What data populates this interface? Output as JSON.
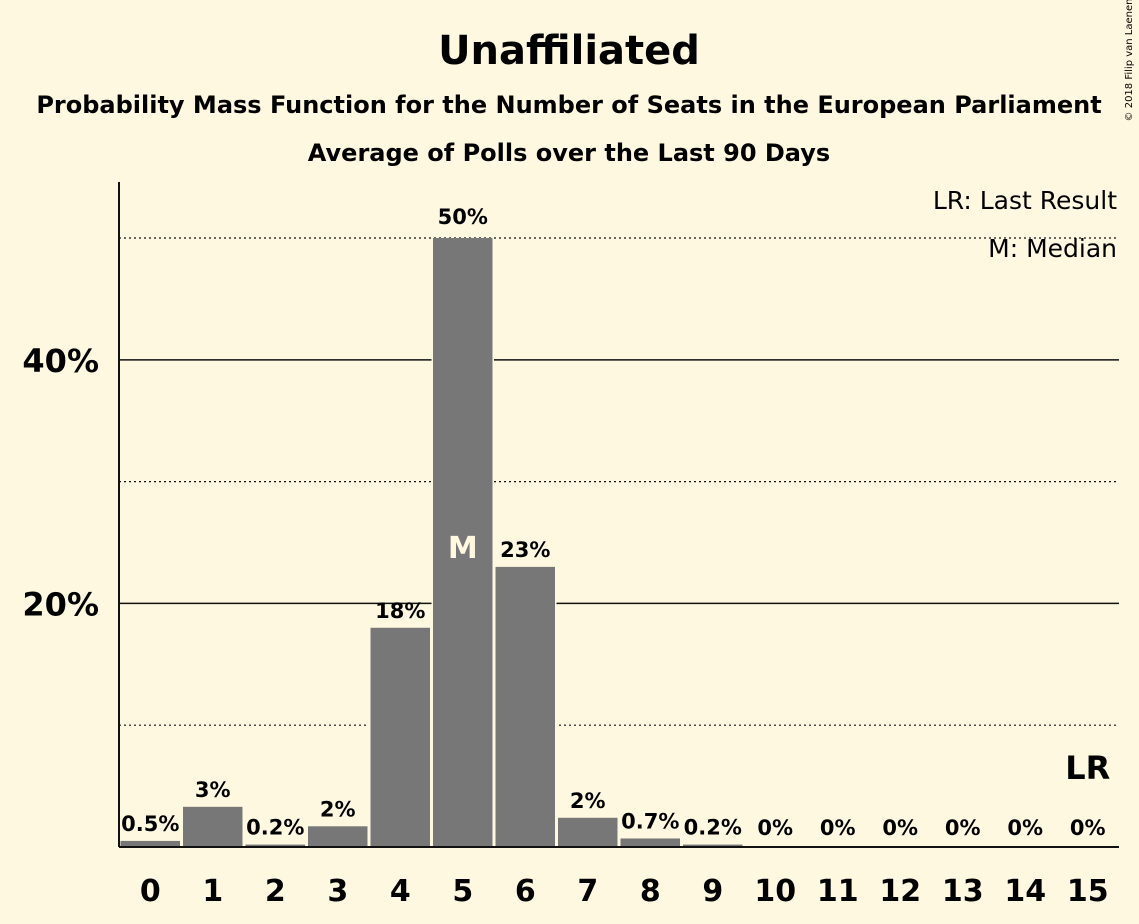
{
  "chart_data": {
    "type": "bar",
    "title": "Unaffiliated",
    "subtitle1": "Probability Mass Function for the Number of Seats in the European Parliament",
    "subtitle2": "Average of Polls over the Last 90 Days",
    "categories": [
      "0",
      "1",
      "2",
      "3",
      "4",
      "5",
      "6",
      "7",
      "8",
      "9",
      "10",
      "11",
      "12",
      "13",
      "14",
      "15"
    ],
    "values": [
      0.5,
      3.3,
      0.2,
      1.7,
      18,
      50,
      23,
      2.4,
      0.7,
      0.2,
      0,
      0,
      0,
      0,
      0,
      0
    ],
    "data_labels": [
      "0.5%",
      "3%",
      "0.2%",
      "2%",
      "18%",
      "50%",
      "23%",
      "2%",
      "0.7%",
      "0.2%",
      "0%",
      "0%",
      "0%",
      "0%",
      "0%",
      "0%"
    ],
    "ylim": [
      0,
      54.6
    ],
    "yticks": [
      {
        "value": 20,
        "label": "20%"
      },
      {
        "value": 40,
        "label": "40%"
      }
    ],
    "grid_dotted": [
      10,
      30,
      50
    ],
    "median_index": 5,
    "median_label": "M",
    "last_result_index": 15,
    "last_result_label": "LR",
    "legend": [
      "LR: Last Result",
      "M: Median"
    ],
    "legend_placement": "top-right",
    "bar_color": "#777777",
    "credit": "© 2018 Filip van Laenen"
  }
}
